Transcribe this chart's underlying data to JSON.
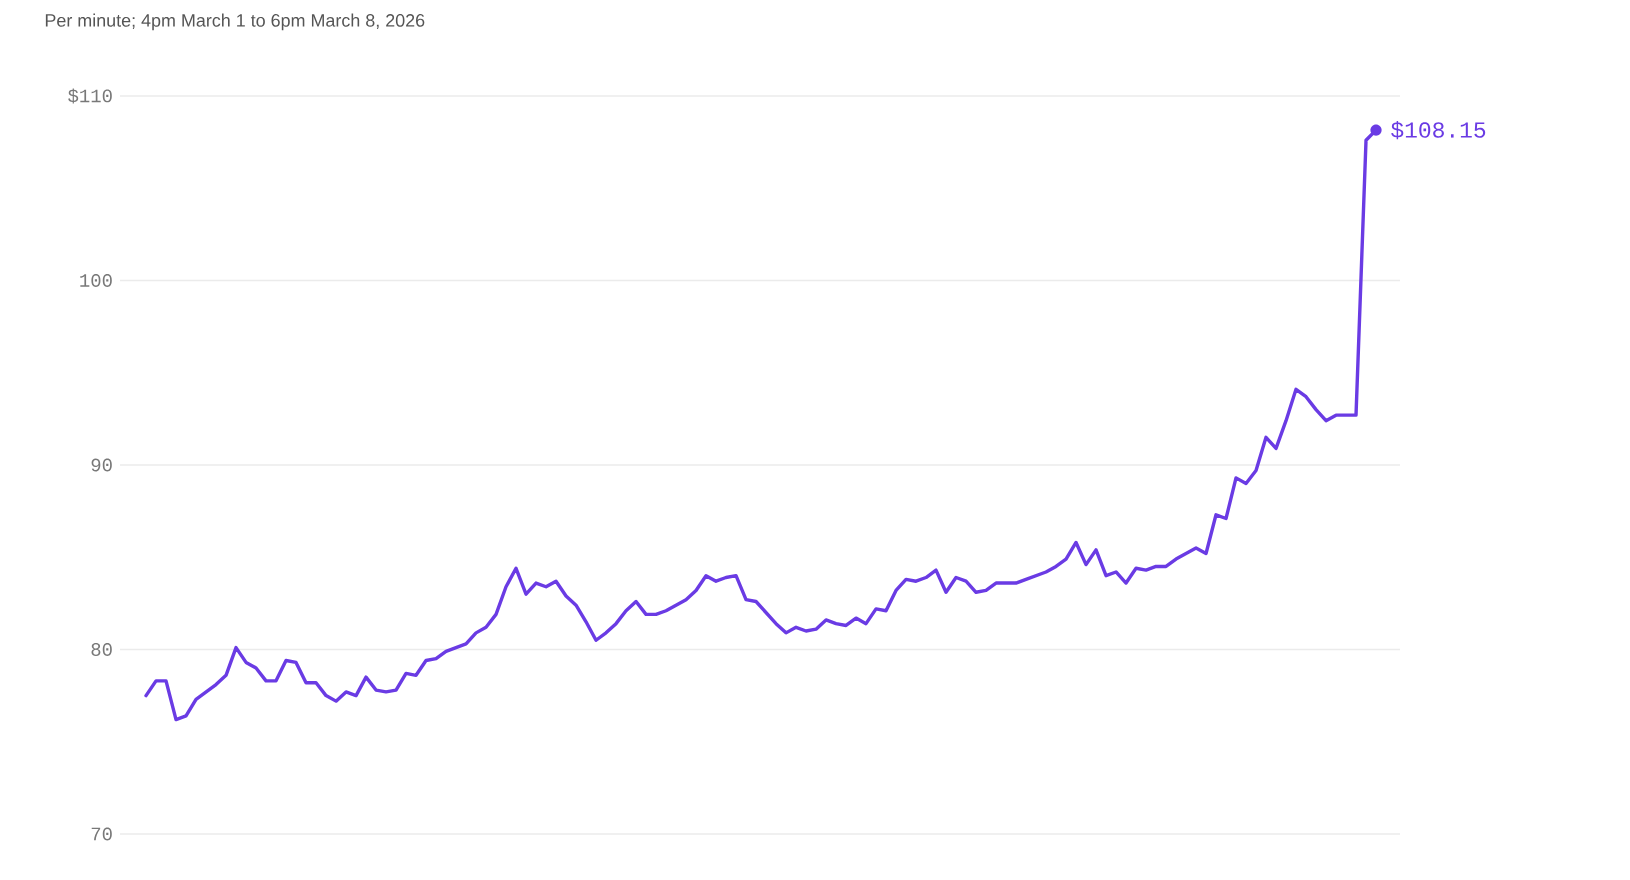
{
  "chart_data": {
    "type": "line",
    "subtitle": "Per minute; 4pm March 1 to 6pm March 8, 2026",
    "categories": [
      null,
      null,
      null,
      null,
      null,
      null,
      null,
      null,
      null,
      null,
      null,
      null,
      null,
      null,
      null,
      null,
      null,
      null,
      null,
      null,
      null,
      null,
      null,
      null,
      null,
      null,
      null,
      null,
      null,
      null,
      null,
      null,
      null,
      null,
      null,
      null,
      null,
      null,
      null,
      null,
      null,
      null,
      null,
      null,
      null,
      null,
      null,
      null,
      null,
      null,
      null,
      null,
      null,
      null,
      null,
      null,
      null,
      null,
      null,
      null,
      null,
      null,
      null,
      null,
      null,
      null,
      null,
      null,
      null,
      null,
      null,
      null,
      null,
      null,
      null,
      null,
      null,
      null,
      null,
      null,
      null,
      null,
      null,
      null,
      null,
      null,
      null,
      null,
      null,
      null,
      null,
      null,
      null,
      null,
      null,
      null,
      null,
      null,
      null,
      null,
      null,
      null,
      null,
      null,
      null,
      null,
      null,
      null,
      null,
      null,
      null,
      null,
      null,
      null,
      null,
      null,
      null,
      null,
      null,
      null,
      null,
      null,
      null,
      null
    ],
    "series": [
      {
        "color": "#6a3be4",
        "values": [
          77.5,
          78.3,
          78.3,
          76.2,
          76.4,
          77.3,
          77.7,
          78.1,
          78.6,
          80.1,
          79.3,
          79.0,
          78.3,
          78.3,
          79.4,
          79.3,
          78.2,
          78.2,
          77.5,
          77.2,
          77.7,
          77.5,
          78.5,
          77.8,
          77.7,
          77.8,
          78.7,
          78.6,
          79.4,
          79.5,
          79.9,
          80.1,
          80.3,
          80.9,
          81.2,
          81.9,
          83.4,
          84.4,
          83.0,
          83.6,
          83.4,
          83.7,
          82.9,
          82.4,
          81.5,
          80.5,
          80.9,
          81.4,
          82.1,
          82.6,
          81.9,
          81.9,
          82.1,
          82.4,
          82.7,
          83.2,
          84.0,
          83.7,
          83.9,
          84.0,
          82.7,
          82.6,
          82.0,
          81.4,
          80.9,
          81.2,
          81.0,
          81.1,
          81.6,
          81.4,
          81.3,
          81.7,
          81.4,
          82.2,
          82.1,
          83.2,
          83.8,
          83.7,
          83.9,
          84.3,
          83.1,
          83.9,
          83.7,
          83.1,
          83.2,
          83.6,
          83.6,
          83.6,
          83.8,
          84.0,
          84.2,
          84.5,
          84.9,
          85.8,
          84.6,
          85.4,
          84.0,
          84.2,
          83.6,
          84.4,
          84.3,
          84.5,
          84.5,
          84.9,
          85.2,
          85.5,
          85.2,
          87.3,
          87.1,
          89.3,
          89.0,
          89.7,
          91.5,
          90.9,
          92.4,
          94.1,
          93.7,
          93.0,
          92.4,
          92.7,
          92.7,
          92.7,
          107.6,
          108.15
        ],
        "value_labels": [
          null,
          null,
          null,
          null,
          null,
          null,
          null,
          null,
          null,
          null,
          null,
          null,
          null,
          null,
          null,
          null,
          null,
          null,
          null,
          null,
          null,
          null,
          null,
          null,
          null,
          null,
          null,
          null,
          null,
          null,
          null,
          null,
          null,
          null,
          null,
          null,
          null,
          null,
          null,
          null,
          null,
          null,
          null,
          null,
          null,
          null,
          null,
          null,
          null,
          null,
          null,
          null,
          null,
          null,
          null,
          null,
          null,
          null,
          null,
          null,
          null,
          null,
          null,
          null,
          null,
          null,
          null,
          null,
          null,
          null,
          null,
          null,
          null,
          null,
          null,
          null,
          null,
          null,
          null,
          null,
          null,
          null,
          null,
          null,
          null,
          null,
          null,
          null,
          null,
          null,
          null,
          null,
          null,
          null,
          null,
          null,
          null,
          null,
          null,
          null,
          null,
          null,
          null,
          null,
          null,
          null,
          null,
          null,
          null,
          null,
          null,
          null,
          null,
          null,
          null,
          null,
          null,
          null,
          null,
          null,
          null,
          null,
          null,
          "$108.15"
        ]
      }
    ],
    "ylim": [
      70,
      110
    ],
    "yticks": [
      {
        "value": 110,
        "label": "$110"
      },
      100,
      90,
      80,
      70
    ],
    "grid": "y",
    "tick_labels": "y"
  }
}
